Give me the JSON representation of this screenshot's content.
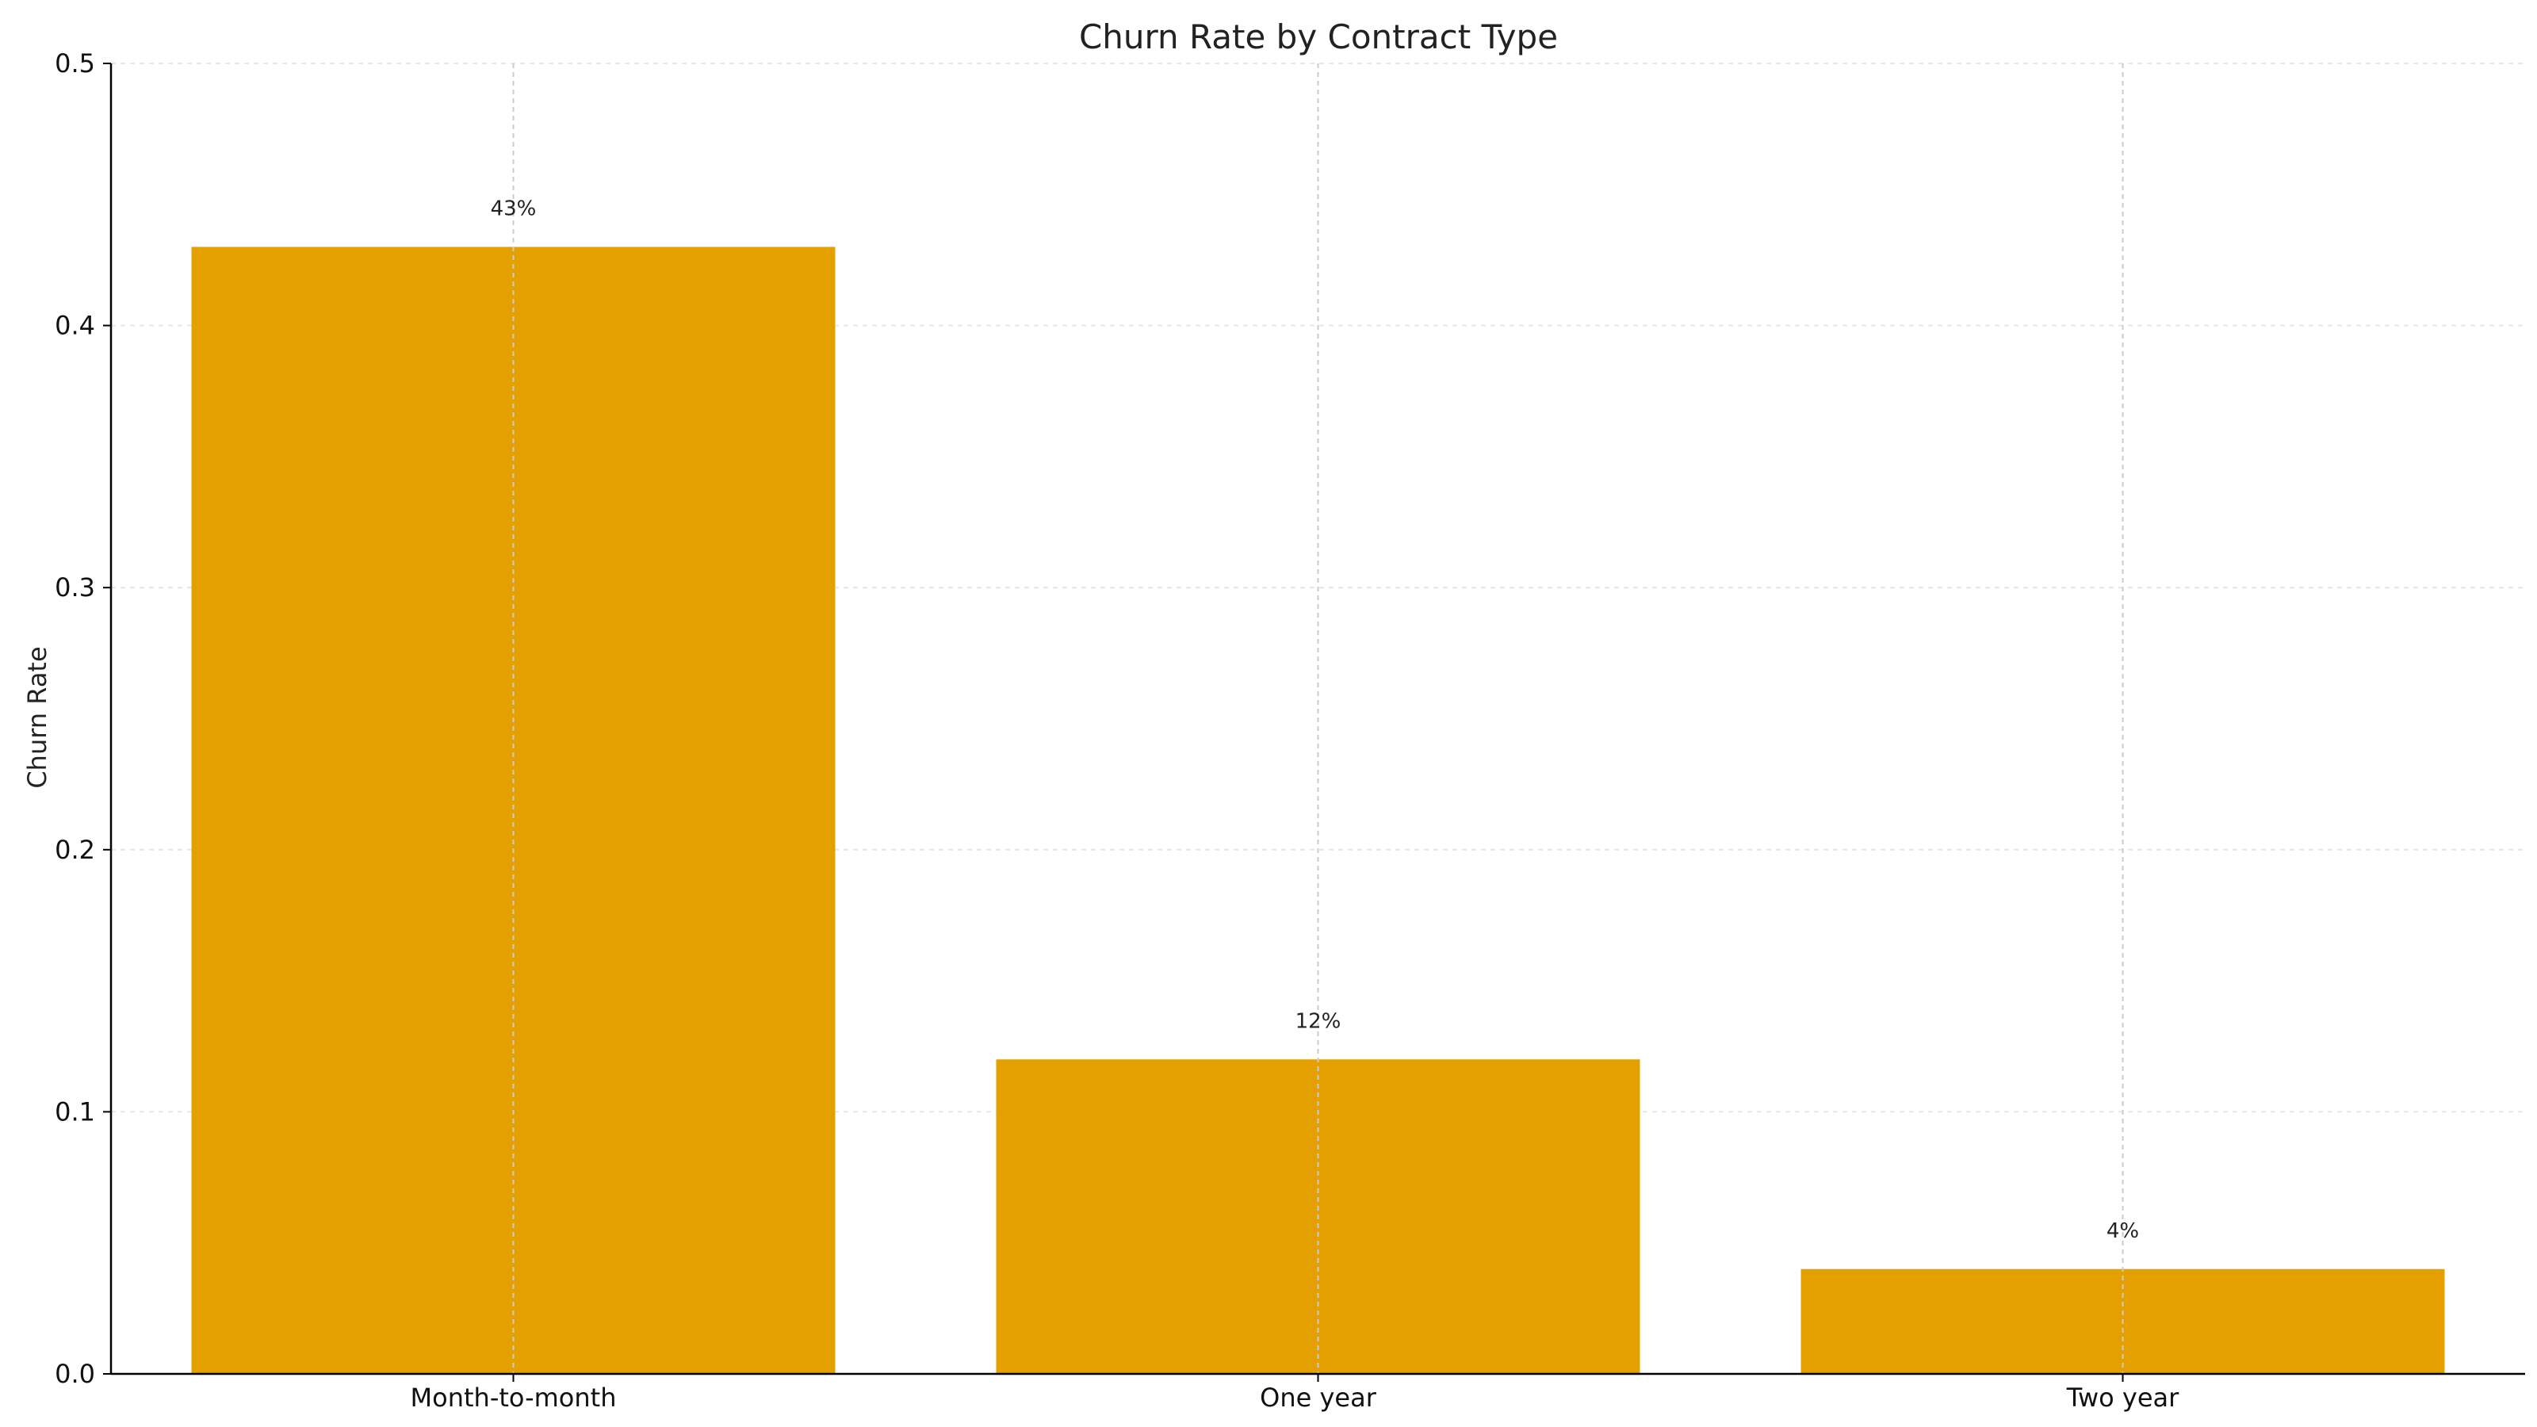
{
  "chart_data": {
    "type": "bar",
    "title": "Churn Rate by Contract Type",
    "xlabel": "",
    "ylabel": "Churn Rate",
    "categories": [
      "Month-to-month",
      "One year",
      "Two year"
    ],
    "values": [
      0.43,
      0.12,
      0.04
    ],
    "data_labels": [
      "43%",
      "12%",
      "4%"
    ],
    "ylim": [
      0,
      0.5
    ],
    "yticks": [
      0.0,
      0.1,
      0.2,
      0.3,
      0.4,
      0.5
    ],
    "ytick_labels": [
      "0.0",
      "0.1",
      "0.2",
      "0.3",
      "0.4",
      "0.5"
    ],
    "grid": true,
    "colors": {
      "bar": "#E3A000",
      "grid": "#CCCCCC",
      "axis": "#000000"
    }
  }
}
